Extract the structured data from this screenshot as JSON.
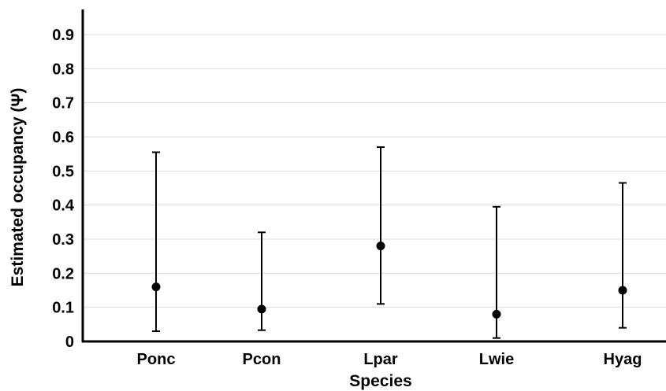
{
  "chart_data": {
    "type": "scatter",
    "title": "",
    "xlabel": "Species",
    "ylabel": "Estimated occupancy (Ψ)",
    "ylim": [
      0,
      0.97
    ],
    "yticks": [
      "0",
      "0.1",
      "0.2",
      "0.3",
      "0.4",
      "0.5",
      "0.6",
      "0.7",
      "0.8",
      "0.9"
    ],
    "grid": true,
    "categories": [
      "Ponc",
      "Pcon",
      "Lpar",
      "Lwie",
      "Hyag"
    ],
    "values": [
      0.16,
      0.095,
      0.28,
      0.08,
      0.15
    ],
    "error_lower": [
      0.03,
      0.033,
      0.11,
      0.01,
      0.04
    ],
    "error_upper": [
      0.555,
      0.32,
      0.57,
      0.395,
      0.465
    ]
  }
}
